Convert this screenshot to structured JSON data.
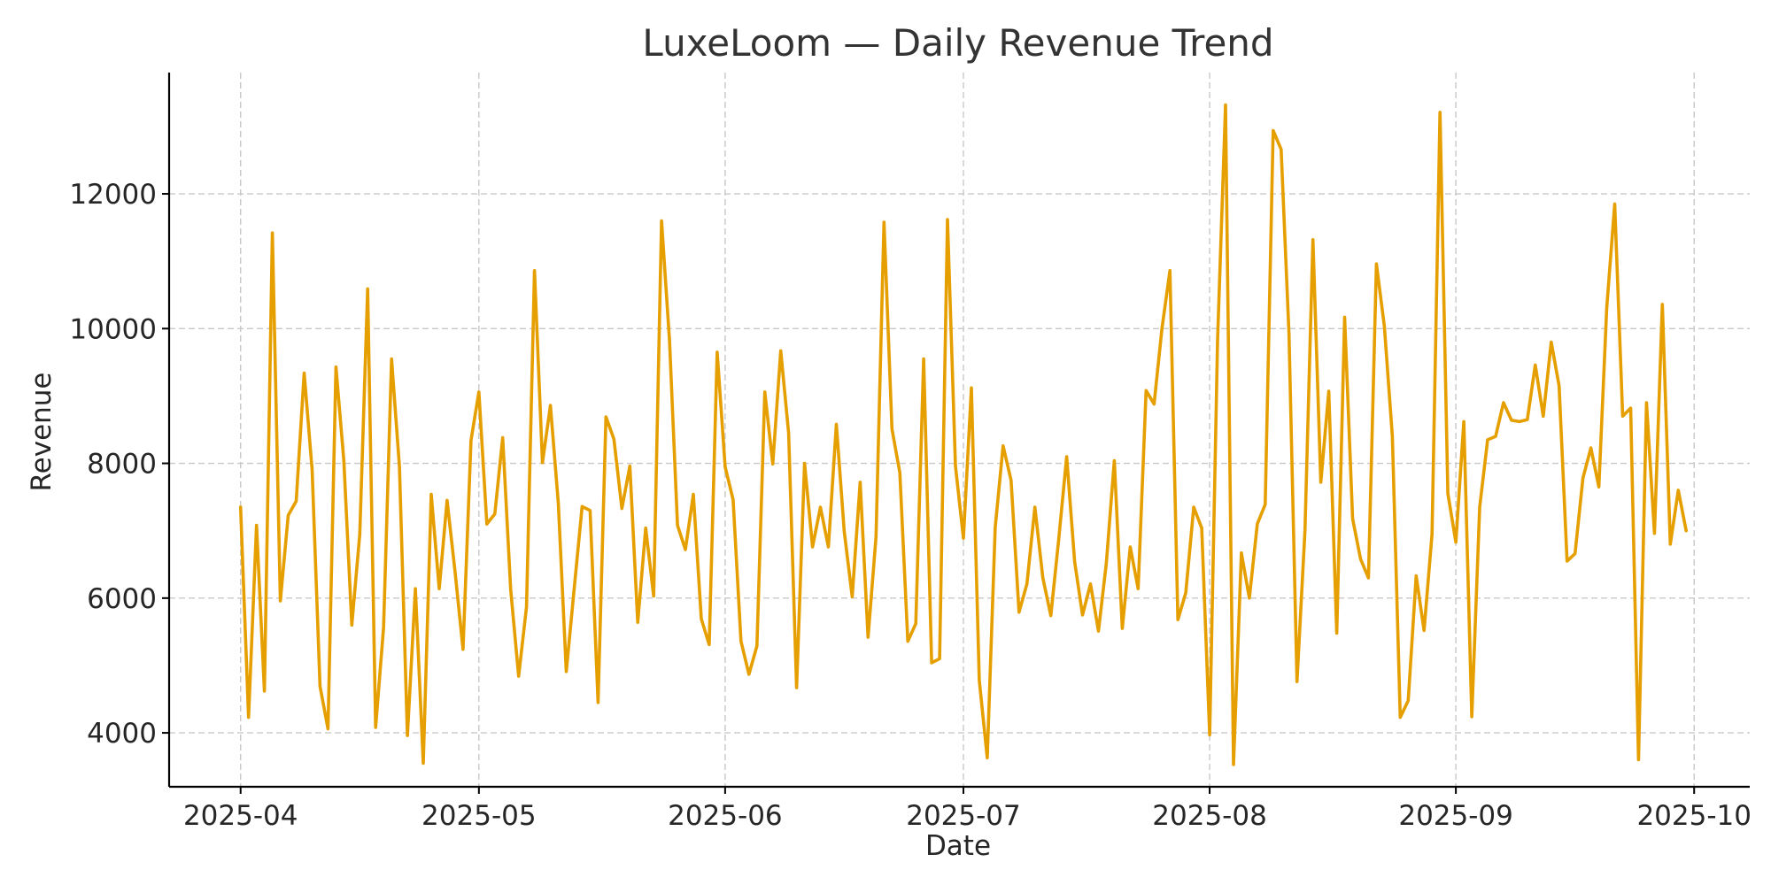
{
  "chart_data": {
    "type": "line",
    "title": "LuxeLoom — Daily Revenue Trend",
    "xlabel": "Date",
    "ylabel": "Revenue",
    "x_start": "2025-04-01",
    "x_end": "2025-09-30",
    "xlim": [
      "2025-03-23",
      "2025-10-08"
    ],
    "ylim": [
      3200,
      13800
    ],
    "x_ticks": [
      {
        "date": "2025-04-01",
        "label": "2025-04"
      },
      {
        "date": "2025-05-01",
        "label": "2025-05"
      },
      {
        "date": "2025-06-01",
        "label": "2025-06"
      },
      {
        "date": "2025-07-01",
        "label": "2025-07"
      },
      {
        "date": "2025-08-01",
        "label": "2025-08"
      },
      {
        "date": "2025-09-01",
        "label": "2025-09"
      },
      {
        "date": "2025-10-01",
        "label": "2025-10"
      }
    ],
    "y_ticks": [
      4000,
      6000,
      8000,
      10000,
      12000
    ],
    "grid": true,
    "color": "#e69f00",
    "series": [
      {
        "values": [
          7350,
          4230,
          7080,
          4620,
          11420,
          5960,
          7230,
          7440,
          9340,
          7900,
          4690,
          4060,
          9430,
          8040,
          5600,
          6950,
          10590,
          4080,
          5570,
          9550,
          7950,
          3960,
          6140,
          3550,
          7540,
          6140,
          7450,
          6390,
          5240,
          8340,
          9060,
          7100,
          7250,
          8380,
          6130,
          4840,
          5870,
          10860,
          8010,
          8860,
          7410,
          4910,
          6150,
          7360,
          7300,
          4450,
          8690,
          8360,
          7330,
          7960,
          5640,
          7040,
          6030,
          11600,
          9820,
          7080,
          6720,
          7540,
          5690,
          5310,
          9650,
          7950,
          7460,
          5360,
          4870,
          5290,
          9060,
          7990,
          9670,
          8450,
          4670,
          8000,
          6760,
          7350,
          6760,
          8580,
          6990,
          6020,
          7720,
          5420,
          6910,
          11580,
          8510,
          7860,
          5360,
          5620,
          9550,
          5040,
          5100,
          11620,
          7960,
          6890,
          9120,
          4780,
          3630,
          7050,
          8260,
          7750,
          5790,
          6210,
          7350,
          6300,
          5740,
          6870,
          8100,
          6540,
          5750,
          6210,
          5510,
          6520,
          8040,
          5550,
          6760,
          6140,
          9080,
          8880,
          10000,
          10860,
          5680,
          6080,
          7350,
          7040,
          3970,
          9830,
          13320,
          3530,
          6670,
          6000,
          7100,
          7390,
          12940,
          12660,
          9910,
          4760,
          7000,
          11320,
          7720,
          9070,
          5480,
          10170,
          7180,
          6580,
          6300,
          10960,
          10030,
          8400,
          4230,
          4480,
          6330,
          5520,
          6950,
          13210,
          7550,
          6830,
          8620,
          4240,
          7350,
          8350,
          8400,
          8900,
          8640,
          8620,
          8650,
          9460,
          8700,
          9800,
          9150,
          6550,
          6660,
          7780,
          8230,
          7650,
          10310,
          11850,
          8700,
          8820,
          3600,
          8900,
          6960,
          10360,
          6800,
          7600,
          7000
        ]
      }
    ]
  }
}
